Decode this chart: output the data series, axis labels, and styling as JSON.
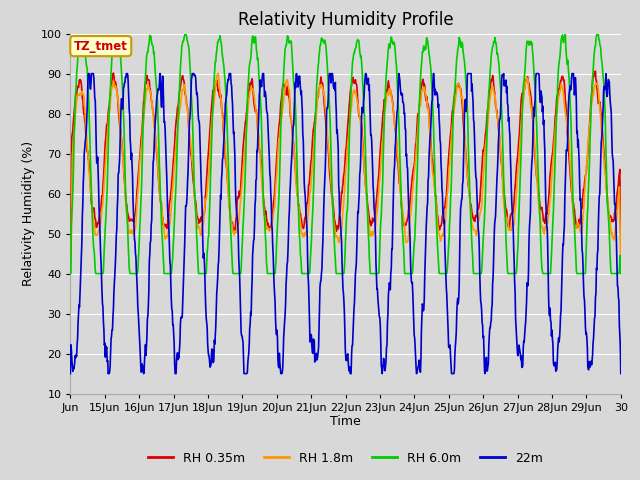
{
  "title": "Relativity Humidity Profile",
  "xlabel": "Time",
  "ylabel": "Relativity Humidity (%)",
  "ylim": [
    10,
    100
  ],
  "xlim_days": [
    14,
    30
  ],
  "x_tick_labels": [
    "Jun",
    "15Jun",
    "16Jun",
    "17Jun",
    "18Jun",
    "19Jun",
    "20Jun",
    "21Jun",
    "22Jun",
    "23Jun",
    "24Jun",
    "25Jun",
    "26Jun",
    "27Jun",
    "28Jun",
    "29Jun",
    "30"
  ],
  "x_tick_positions": [
    14,
    15,
    16,
    17,
    18,
    19,
    20,
    21,
    22,
    23,
    24,
    25,
    26,
    27,
    28,
    29,
    30
  ],
  "colors": {
    "RH 0.35m": "#dd0000",
    "RH 1.8m": "#ff9900",
    "RH 6.0m": "#00cc00",
    "22m": "#0000cc"
  },
  "annotation_text": "TZ_tmet",
  "annotation_color": "#cc0000",
  "annotation_bg": "#ffffcc",
  "annotation_border": "#cc9900",
  "fig_bg_color": "#d8d8d8",
  "plot_bg_color": "#d8d8d8",
  "grid_color": "#ffffff",
  "title_fontsize": 12,
  "axis_label_fontsize": 9,
  "tick_fontsize": 8,
  "legend_fontsize": 9,
  "linewidth": 1.2
}
